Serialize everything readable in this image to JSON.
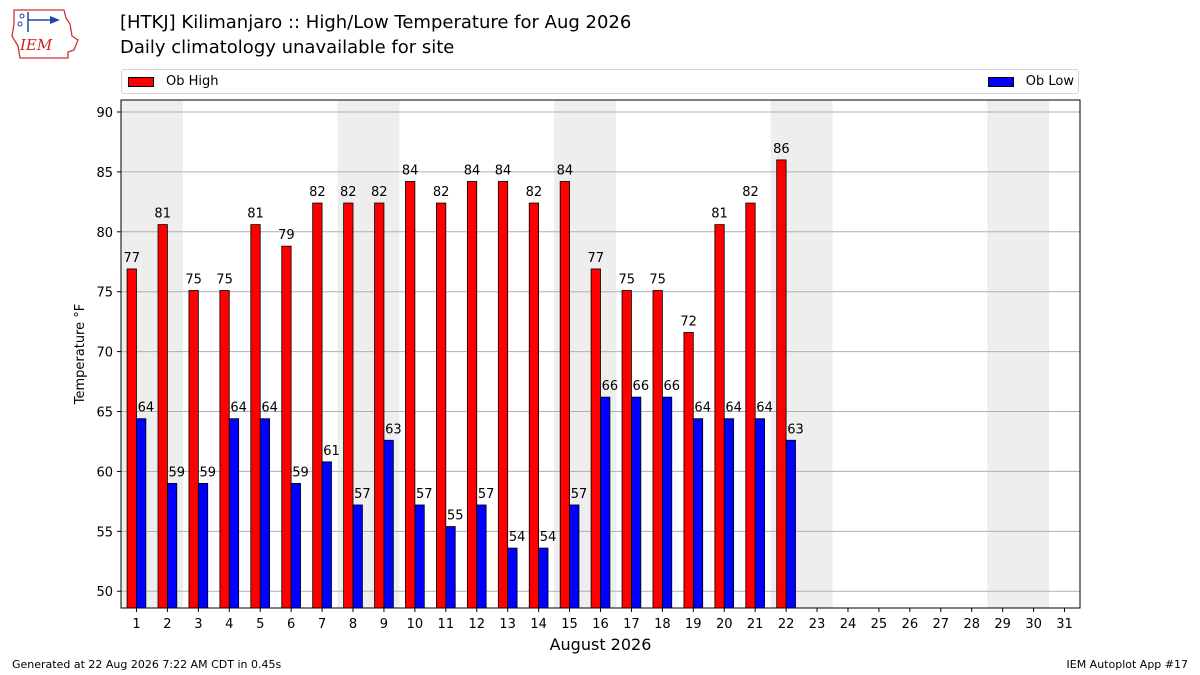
{
  "header": {
    "logo_text": "IEM",
    "title": "[HTKJ] Kilimanjaro :: High/Low Temperature for Aug 2026",
    "subtitle": "Daily climatology unavailable for site"
  },
  "footer": {
    "generated": "Generated at 22 Aug 2026 7:22 AM CDT in 0.45s",
    "app": "IEM Autoplot App #17"
  },
  "colors": {
    "high": "#ff0000",
    "low": "#0000ff",
    "weekend_shade": "#eeeeee",
    "grid": "#b0b0b0"
  },
  "chart_data": {
    "type": "bar",
    "xlabel": "August 2026",
    "ylabel": "Temperature °F",
    "ylim": [
      48.6,
      91
    ],
    "yticks": [
      50,
      55,
      60,
      65,
      70,
      75,
      80,
      85,
      90
    ],
    "categories": [
      "1",
      "2",
      "3",
      "4",
      "5",
      "6",
      "7",
      "8",
      "9",
      "10",
      "11",
      "12",
      "13",
      "14",
      "15",
      "16",
      "17",
      "18",
      "19",
      "20",
      "21",
      "22",
      "23",
      "24",
      "25",
      "26",
      "27",
      "28",
      "29",
      "30",
      "31"
    ],
    "weekend_bands": [
      [
        1,
        2
      ],
      [
        8,
        9
      ],
      [
        15,
        16
      ],
      [
        22,
        23
      ],
      [
        29,
        30
      ]
    ],
    "grid": "horizontal",
    "legend_position": "top",
    "series": [
      {
        "name": "Ob High",
        "color": "#ff0000",
        "values": [
          77,
          81,
          75,
          75,
          81,
          79,
          82,
          82,
          82,
          84,
          82,
          84,
          84,
          82,
          84,
          77,
          75,
          75,
          72,
          81,
          82,
          86,
          null,
          null,
          null,
          null,
          null,
          null,
          null,
          null,
          null
        ],
        "plotted": [
          76.9,
          80.6,
          75.1,
          75.1,
          80.6,
          78.8,
          82.4,
          82.4,
          82.4,
          84.2,
          82.4,
          84.2,
          84.2,
          82.4,
          84.2,
          76.9,
          75.1,
          75.1,
          71.6,
          80.6,
          82.4,
          86.0,
          null,
          null,
          null,
          null,
          null,
          null,
          null,
          null,
          null
        ]
      },
      {
        "name": "Ob Low",
        "color": "#0000ff",
        "values": [
          64,
          59,
          59,
          64,
          64,
          59,
          61,
          57,
          63,
          57,
          55,
          57,
          54,
          54,
          57,
          66,
          66,
          66,
          64,
          64,
          64,
          63,
          null,
          null,
          null,
          null,
          null,
          null,
          null,
          null,
          null
        ],
        "plotted": [
          64.4,
          59.0,
          59.0,
          64.4,
          64.4,
          59.0,
          60.8,
          57.2,
          62.6,
          57.2,
          55.4,
          57.2,
          53.6,
          53.6,
          57.2,
          66.2,
          66.2,
          66.2,
          64.4,
          64.4,
          64.4,
          62.6,
          null,
          null,
          null,
          null,
          null,
          null,
          null,
          null,
          null
        ]
      }
    ]
  }
}
